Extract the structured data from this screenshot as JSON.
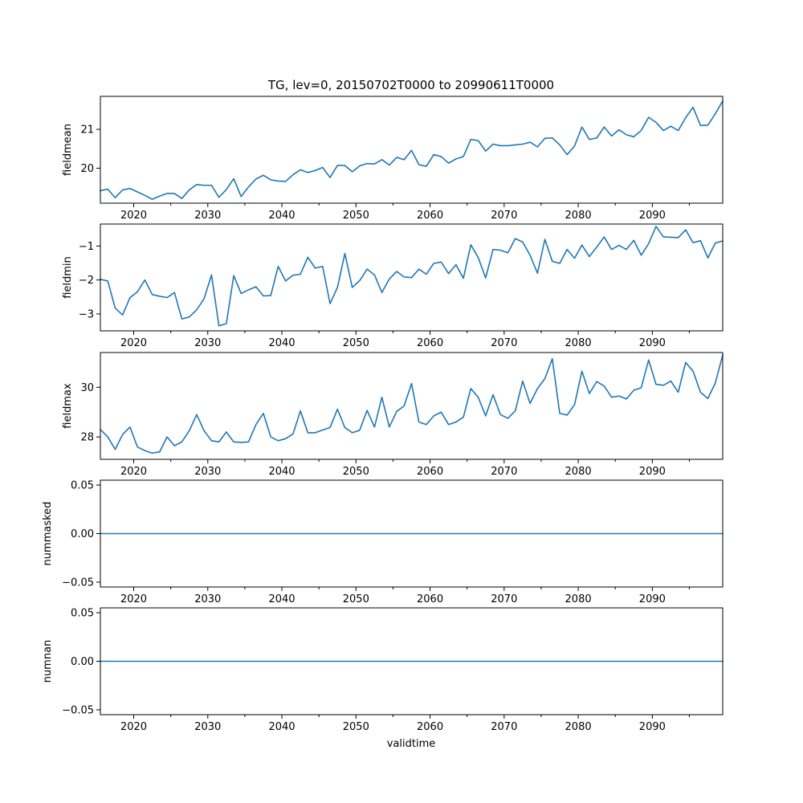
{
  "chart_data": {
    "type": "line",
    "title": "TG, lev=0, 20150702T0000 to 20990611T0000",
    "xlabel": "validtime",
    "xlim": [
      2015.5,
      2099.5
    ],
    "x_ticks": [
      2020,
      2030,
      2040,
      2050,
      2060,
      2070,
      2080,
      2090
    ],
    "x_tick_labels": [
      "2020",
      "2030",
      "2040",
      "2050",
      "2060",
      "2070",
      "2080",
      "2090"
    ],
    "x": [
      2015.5,
      2016.5,
      2017.5,
      2018.5,
      2019.5,
      2020.5,
      2021.5,
      2022.5,
      2023.5,
      2024.5,
      2025.5,
      2026.5,
      2027.5,
      2028.5,
      2029.5,
      2030.5,
      2031.5,
      2032.5,
      2033.5,
      2034.5,
      2035.5,
      2036.5,
      2037.5,
      2038.5,
      2039.5,
      2040.5,
      2041.5,
      2042.5,
      2043.5,
      2044.5,
      2045.5,
      2046.5,
      2047.5,
      2048.5,
      2049.5,
      2050.5,
      2051.5,
      2052.5,
      2053.5,
      2054.5,
      2055.5,
      2056.5,
      2057.5,
      2058.5,
      2059.5,
      2060.5,
      2061.5,
      2062.5,
      2063.5,
      2064.5,
      2065.5,
      2066.5,
      2067.5,
      2068.5,
      2069.5,
      2070.5,
      2071.5,
      2072.5,
      2073.5,
      2074.5,
      2075.5,
      2076.5,
      2077.5,
      2078.5,
      2079.5,
      2080.5,
      2081.5,
      2082.5,
      2083.5,
      2084.5,
      2085.5,
      2086.5,
      2087.5,
      2088.5,
      2089.5,
      2090.5,
      2091.5,
      2092.5,
      2093.5,
      2094.5,
      2095.5,
      2096.5,
      2097.5,
      2098.5,
      2099.5
    ],
    "panels": [
      {
        "ylabel": "fieldmean",
        "ylim": [
          19.1,
          21.85
        ],
        "y_ticks": [
          20,
          21
        ],
        "y_tick_labels": [
          "20",
          "21"
        ],
        "values": [
          19.42,
          19.46,
          19.24,
          19.44,
          19.48,
          19.39,
          19.3,
          19.2,
          19.28,
          19.35,
          19.35,
          19.22,
          19.44,
          19.58,
          19.56,
          19.56,
          19.25,
          19.45,
          19.73,
          19.27,
          19.52,
          19.72,
          19.82,
          19.7,
          19.67,
          19.66,
          19.83,
          19.96,
          19.89,
          19.94,
          20.02,
          19.76,
          20.07,
          20.07,
          19.91,
          20.06,
          20.12,
          20.11,
          20.22,
          20.08,
          20.28,
          20.22,
          20.46,
          20.09,
          20.05,
          20.35,
          20.3,
          20.13,
          20.24,
          20.3,
          20.74,
          20.71,
          20.44,
          20.62,
          20.58,
          20.58,
          20.6,
          20.62,
          20.67,
          20.55,
          20.77,
          20.78,
          20.6,
          20.35,
          20.57,
          21.06,
          20.74,
          20.78,
          21.06,
          20.83,
          20.99,
          20.86,
          20.81,
          20.97,
          21.31,
          21.18,
          20.97,
          21.08,
          20.97,
          21.3,
          21.57,
          21.1,
          21.11,
          21.4,
          21.73
        ]
      },
      {
        "ylabel": "fieldmin",
        "ylim": [
          -3.5,
          -0.35
        ],
        "y_ticks": [
          -3,
          -2,
          -1
        ],
        "y_tick_labels": [
          "−3",
          "−2",
          "−1"
        ],
        "values": [
          -1.98,
          -2.03,
          -2.83,
          -3.03,
          -2.52,
          -2.35,
          -2.0,
          -2.43,
          -2.48,
          -2.52,
          -2.37,
          -3.15,
          -3.09,
          -2.88,
          -2.55,
          -1.85,
          -3.35,
          -3.29,
          -1.87,
          -2.4,
          -2.29,
          -2.2,
          -2.47,
          -2.46,
          -1.6,
          -2.03,
          -1.86,
          -1.83,
          -1.33,
          -1.65,
          -1.6,
          -2.7,
          -2.22,
          -1.22,
          -2.22,
          -2.02,
          -1.68,
          -1.85,
          -2.37,
          -1.97,
          -1.75,
          -1.91,
          -1.93,
          -1.68,
          -1.83,
          -1.51,
          -1.47,
          -1.81,
          -1.55,
          -1.95,
          -0.96,
          -1.34,
          -1.94,
          -1.1,
          -1.12,
          -1.2,
          -0.78,
          -0.88,
          -1.27,
          -1.8,
          -0.8,
          -1.45,
          -1.51,
          -1.1,
          -1.36,
          -0.97,
          -1.31,
          -1.03,
          -0.73,
          -1.1,
          -0.98,
          -1.1,
          -0.83,
          -1.27,
          -0.93,
          -0.42,
          -0.73,
          -0.74,
          -0.75,
          -0.52,
          -0.9,
          -0.84,
          -1.35,
          -0.91,
          -0.85
        ]
      },
      {
        "ylabel": "fieldmax",
        "ylim": [
          27.1,
          31.4
        ],
        "y_ticks": [
          28,
          30
        ],
        "y_tick_labels": [
          "28",
          "30"
        ],
        "values": [
          28.3,
          28.0,
          27.5,
          28.1,
          28.4,
          27.6,
          27.45,
          27.35,
          27.4,
          28.0,
          27.65,
          27.8,
          28.25,
          28.9,
          28.25,
          27.85,
          27.8,
          28.2,
          27.8,
          27.78,
          27.8,
          28.5,
          28.95,
          28.0,
          27.85,
          27.93,
          28.12,
          29.05,
          28.17,
          28.17,
          28.28,
          28.38,
          29.12,
          28.38,
          28.17,
          28.27,
          29.07,
          28.4,
          29.6,
          28.4,
          29.03,
          29.25,
          30.15,
          28.6,
          28.5,
          28.85,
          29.0,
          28.5,
          28.6,
          28.8,
          29.95,
          29.6,
          28.85,
          29.7,
          28.9,
          28.75,
          29.05,
          30.25,
          29.35,
          29.95,
          30.35,
          31.15,
          28.95,
          28.88,
          29.3,
          30.65,
          29.75,
          30.23,
          30.05,
          29.6,
          29.65,
          29.53,
          29.88,
          29.98,
          31.1,
          30.12,
          30.08,
          30.25,
          29.8,
          31.0,
          30.65,
          29.8,
          29.55,
          30.17,
          31.3
        ]
      },
      {
        "ylabel": "nummasked",
        "ylim": [
          -0.055,
          0.055
        ],
        "y_ticks": [
          -0.05,
          0.0,
          0.05
        ],
        "y_tick_labels": [
          "−0.05",
          "0.00",
          "0.05"
        ],
        "constant": 0
      },
      {
        "ylabel": "numnan",
        "ylim": [
          -0.055,
          0.055
        ],
        "y_ticks": [
          -0.05,
          0.0,
          0.05
        ],
        "y_tick_labels": [
          "−0.05",
          "0.00",
          "0.05"
        ],
        "constant": 0
      }
    ]
  }
}
